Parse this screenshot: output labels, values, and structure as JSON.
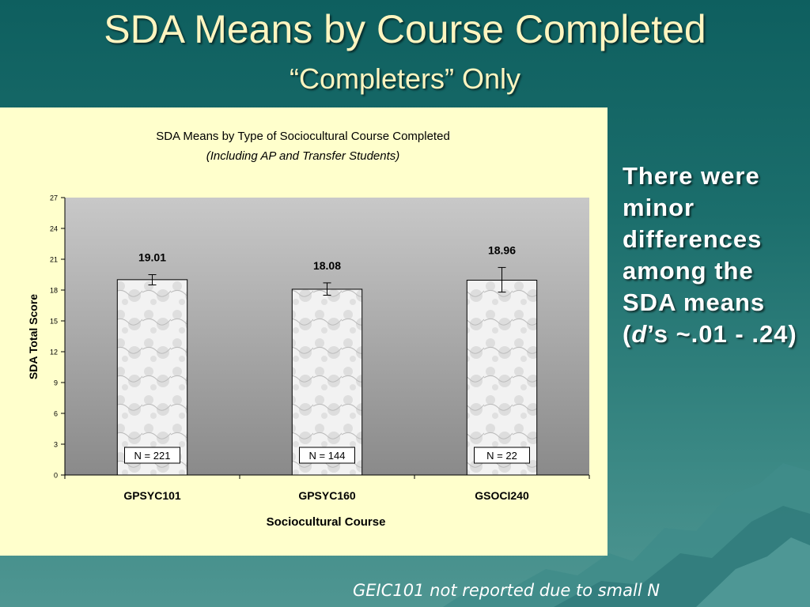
{
  "slide": {
    "title": "SDA Means by Course Completed",
    "subtitle": "“Completers” Only",
    "side_text_parts": [
      "There were minor differences among the SDA means (",
      "d",
      "’s ~.01 - .24)"
    ],
    "footnote": "GEIC101 not reported due to small N"
  },
  "colors": {
    "title": "#fff5c0",
    "panel": "#ffffcc",
    "plot_top": "#c8c8c8",
    "plot_bottom": "#8a8a8a",
    "bar_fill": "#f2f2f2"
  },
  "chart_data": {
    "type": "bar",
    "title": "SDA Means by Type of Sociocultural Course Completed",
    "subtitle": "(Including AP and Transfer Students)",
    "xlabel": "Sociocultural Course",
    "ylabel": "SDA Total Score",
    "ylim": [
      0,
      27
    ],
    "yticks": [
      0,
      3,
      6,
      9,
      12,
      15,
      18,
      21,
      24,
      27
    ],
    "categories": [
      "GPSYC101",
      "GPSYC160",
      "GSOCI240"
    ],
    "values": [
      19.01,
      18.08,
      18.96
    ],
    "value_labels": [
      "19.01",
      "18.08",
      "18.96"
    ],
    "error_low": [
      18.5,
      17.5,
      17.8
    ],
    "error_high": [
      19.5,
      18.7,
      20.2
    ],
    "n_labels": [
      "N = 221",
      "N = 144",
      "N = 22"
    ],
    "grid": false,
    "legend": "none"
  }
}
